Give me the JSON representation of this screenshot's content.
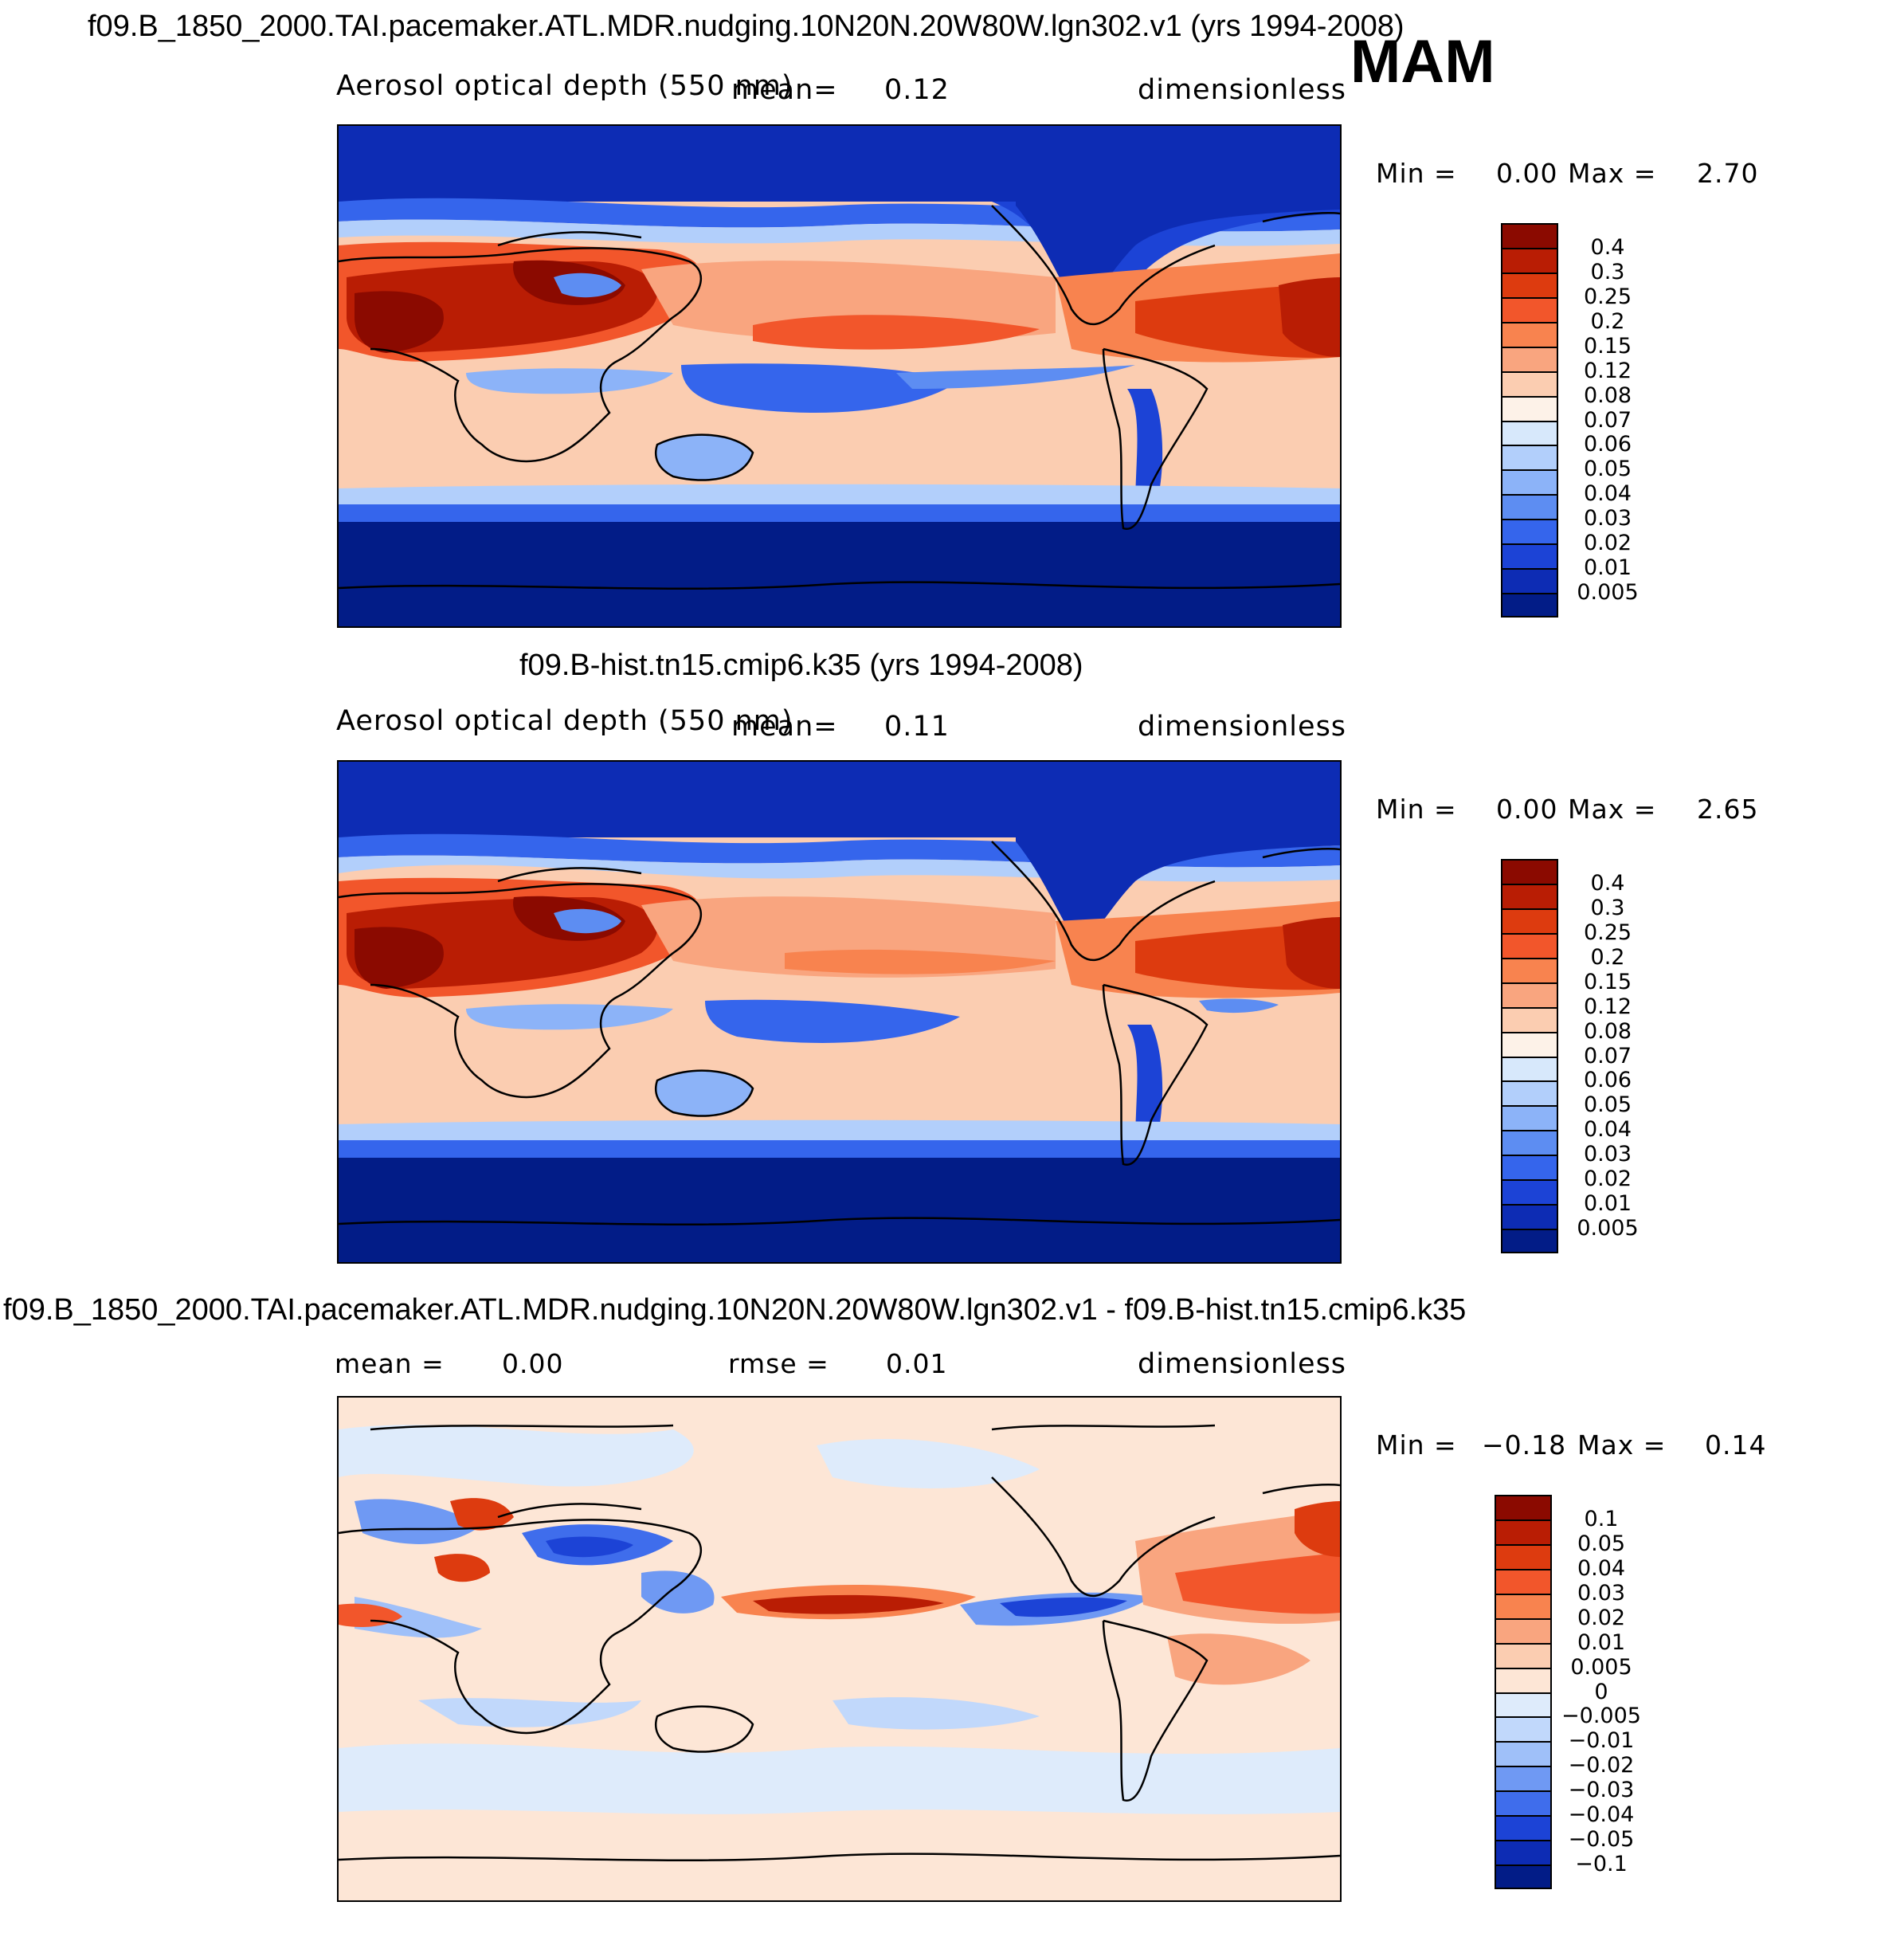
{
  "season": "MAM",
  "panels": [
    {
      "title": "f09.B_1850_2000.TAI.pacemaker.ATL.MDR.nudging.10N20N.20W80W.lgn302.v1 (yrs 1994-2008)",
      "variable": "Aerosol optical depth (550 nm)",
      "mean_label": "mean=",
      "mean_value": "0.12",
      "units": "dimensionless",
      "min_label": "Min =",
      "min_value": "0.00",
      "max_label": "Max =",
      "max_value": "2.70"
    },
    {
      "title": "f09.B-hist.tn15.cmip6.k35 (yrs 1994-2008)",
      "variable": "Aerosol optical depth (550 nm)",
      "mean_label": "mean=",
      "mean_value": "0.11",
      "units": "dimensionless",
      "min_label": "Min =",
      "min_value": "0.00",
      "max_label": "Max =",
      "max_value": "2.65"
    },
    {
      "title": "f09.B_1850_2000.TAI.pacemaker.ATL.MDR.nudging.10N20N.20W80W.lgn302.v1 - f09.B-hist.tn15.cmip6.k35",
      "mean_label": "mean =",
      "mean_value": "0.00",
      "rmse_label": "rmse =",
      "rmse_value": "0.01",
      "units": "dimensionless",
      "min_label": "Min =",
      "min_value": "−0.18",
      "max_label": "Max =",
      "max_value": "0.14"
    }
  ],
  "colorbars": {
    "aod": {
      "labels": [
        "0.4",
        "0.3",
        "0.25",
        "0.2",
        "0.15",
        "0.12",
        "0.08",
        "0.07",
        "0.06",
        "0.05",
        "0.04",
        "0.03",
        "0.02",
        "0.01",
        "0.005"
      ],
      "colors": [
        "#8b0a00",
        "#b91d04",
        "#dd3b0f",
        "#f2562b",
        "#f8834f",
        "#f9a57f",
        "#fbcdb1",
        "#fdf2e8",
        "#d7e8fb",
        "#b2cffb",
        "#8cb3f8",
        "#5d8df2",
        "#3565ec",
        "#1c43d6",
        "#0d2cb4",
        "#021c87"
      ]
    },
    "diff": {
      "labels": [
        "0.1",
        "0.05",
        "0.04",
        "0.03",
        "0.02",
        "0.01",
        "0.005",
        "0",
        "−0.005",
        "−0.01",
        "−0.02",
        "−0.03",
        "−0.04",
        "−0.05",
        "−0.1"
      ],
      "colors": [
        "#8b0a00",
        "#b91d04",
        "#dd3b0f",
        "#f2562b",
        "#f8834f",
        "#f9a57f",
        "#fbcdb1",
        "#fde6d6",
        "#deebfb",
        "#c1d8fb",
        "#9fc0f9",
        "#6f99f3",
        "#3f6dec",
        "#1c43d6",
        "#0d2cb4",
        "#021c87"
      ]
    }
  }
}
